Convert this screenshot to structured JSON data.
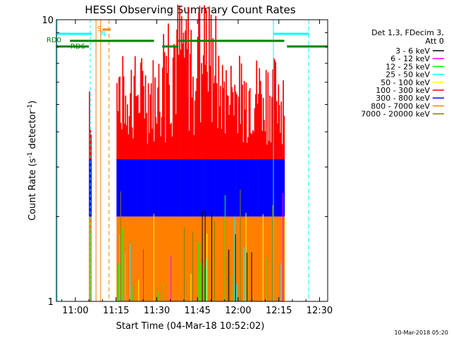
{
  "chart_data": {
    "type": "area",
    "title": "HESSI Observing Summary Count Rates",
    "xlabel": "Start Time (04-Mar-18 10:52:02)",
    "ylabel_main": "Count Rate (s",
    "ylabel_sup1": "-1",
    "ylabel_mid": " detector",
    "ylabel_sup2": "-1",
    "ylabel_end": ")",
    "x_range_minutes": [
      "10:53",
      "12:33"
    ],
    "y_range": [
      1,
      10
    ],
    "y_scale": "log",
    "x_ticks": [
      "11:00",
      "11:15",
      "11:30",
      "11:45",
      "12:00",
      "12:15",
      "12:30"
    ],
    "y_ticks": [
      "1",
      "10"
    ],
    "legend_header": [
      "Det 1,3, FDecim 3,",
      "Att 0"
    ],
    "series": [
      {
        "name": "3 - 6 keV",
        "color": "#000000"
      },
      {
        "name": "6 - 12 keV",
        "color": "#ff00ff"
      },
      {
        "name": "12 - 25 keV",
        "color": "#00ff00"
      },
      {
        "name": "25 - 50 keV",
        "color": "#00ffff"
      },
      {
        "name": "50 - 100 keV",
        "color": "#ffff00"
      },
      {
        "name": "100 - 300 keV",
        "color": "#ff0000"
      },
      {
        "name": "300 - 800 keV",
        "color": "#0000ff"
      },
      {
        "name": "800 - 7000 keV",
        "color": "#ff8000"
      },
      {
        "name": "7000 - 20000 keV",
        "color": "#808000"
      }
    ],
    "bands": [
      {
        "color": "#ff8000",
        "level_low": 1.0,
        "level_high": 2.0
      },
      {
        "color": "#0000ff",
        "level_low": 2.0,
        "level_high": 3.2
      },
      {
        "color": "#ff0000",
        "level_low": 3.2,
        "level_high": 8.5
      }
    ],
    "observation_window": [
      "11:05",
      "12:17"
    ],
    "gap_window": [
      "11:06",
      "11:15"
    ],
    "annotations": {
      "saa_letter": "S",
      "night_letter": "N",
      "rd0_label": "RD0",
      "rd6_label": "RD6"
    }
  },
  "footer_timestamp": "10-Mar-2018 05:20"
}
